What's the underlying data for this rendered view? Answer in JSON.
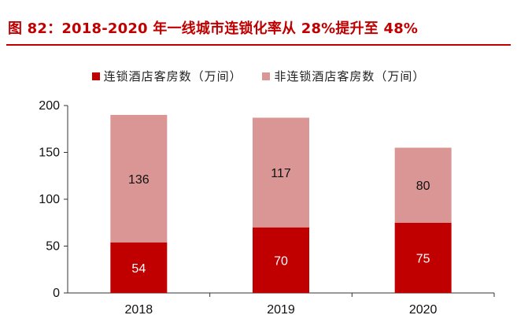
{
  "figure": {
    "title": "图 82：2018-2020 年一线城市连锁化率从 28%提升至 48%"
  },
  "colors": {
    "title": "#c00000",
    "chain": "#c00000",
    "non_chain": "#d99694"
  },
  "chart_data": {
    "type": "bar",
    "stacked": true,
    "categories": [
      "2018",
      "2019",
      "2020"
    ],
    "series": [
      {
        "name": "连锁酒店客房数（万间）",
        "values": [
          54,
          70,
          75
        ]
      },
      {
        "name": "非连锁酒店客房数（万间）",
        "values": [
          136,
          117,
          80
        ]
      }
    ],
    "ylim": [
      0,
      200
    ],
    "yticks": [
      0,
      50,
      100,
      150,
      200
    ],
    "grid": false,
    "legend_position": "top"
  }
}
